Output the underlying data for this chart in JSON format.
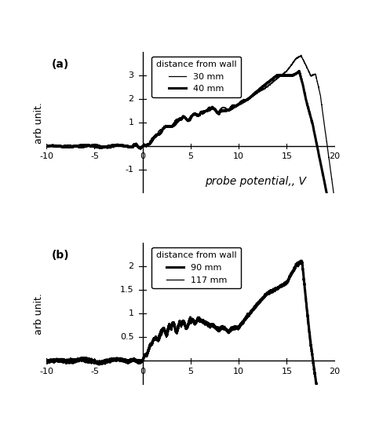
{
  "title_a": "(a)",
  "title_b": "(b)",
  "xlabel": "probe potential,, V",
  "ylabel": "arb unit.",
  "xlim": [
    -10,
    20
  ],
  "ylim_a": [
    -2,
    4
  ],
  "ylim_b": [
    -0.5,
    2.5
  ],
  "yticks_a": [
    -1,
    0,
    1,
    2,
    3
  ],
  "yticks_b": [
    0,
    0.5,
    1.0,
    1.5,
    2.0
  ],
  "xticks": [
    -10,
    -5,
    5,
    10,
    15,
    20
  ],
  "legend_a_labels": [
    "30 mm",
    "40 mm"
  ],
  "legend_b_labels": [
    "90 mm",
    "117 mm"
  ],
  "lw_thin": 0.9,
  "lw_thick": 2.2,
  "bg_color": "#ffffff"
}
